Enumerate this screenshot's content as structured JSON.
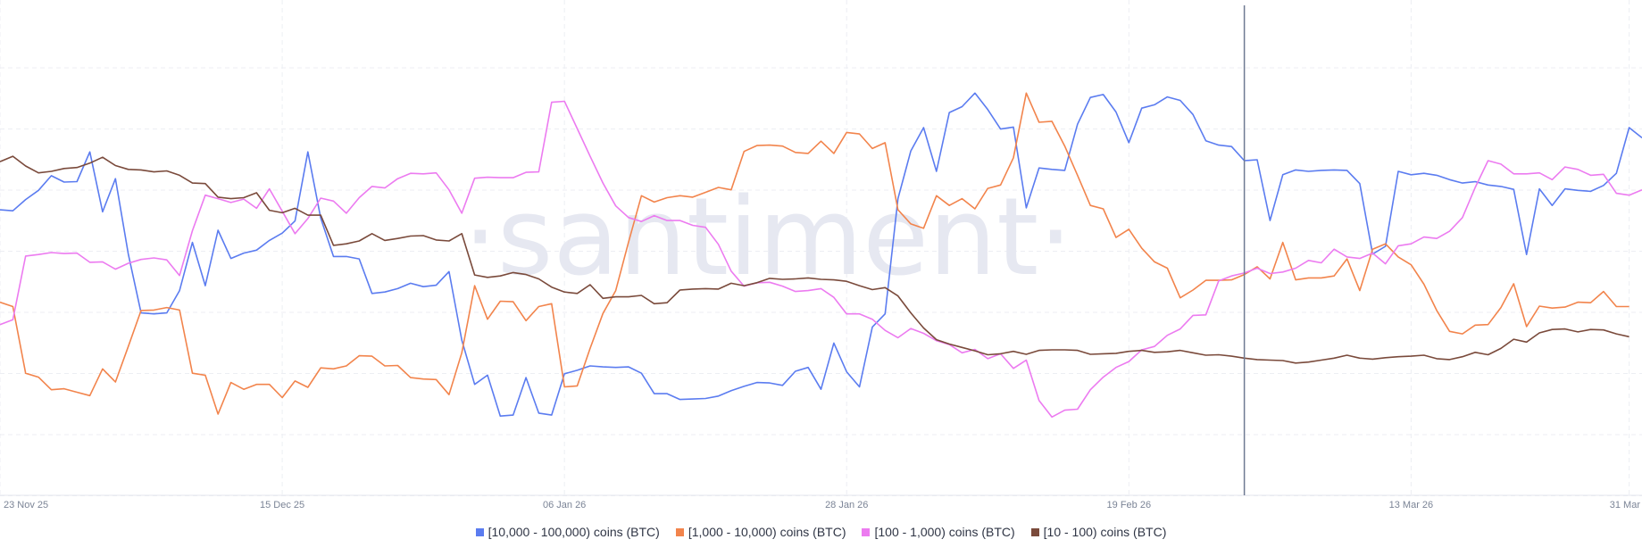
{
  "watermark": "·santiment·",
  "chart_data": {
    "type": "line",
    "title": "",
    "xlabel": "",
    "ylabel": "",
    "x_ticks": [
      "23 Nov 25",
      "15 Dec 25",
      "06 Jan 26",
      "28 Jan 26",
      "19 Feb 26",
      "13 Mar 26",
      "31 Mar"
    ],
    "x_tick_index": [
      0,
      22,
      44,
      66,
      88,
      110,
      127
    ],
    "y_axis": "normalized, no scale shown",
    "ylim": [
      0,
      100
    ],
    "grid": "dashed, light",
    "legend_position": "bottom-center",
    "cursor_index": 97,
    "series": [
      {
        "name": "[10,000 - 100,000) coins (BTC)",
        "color": "#5b7cf0",
        "values": [
          58.7,
          58.5,
          60.8,
          62.7,
          65.7,
          64.4,
          64.5,
          70.6,
          58.3,
          65.1,
          49.6,
          37.5,
          37.3,
          37.5,
          42.1,
          52.0,
          43.1,
          54.5,
          48.7,
          49.8,
          50.4,
          52.4,
          53.9,
          56.4,
          70.6,
          57.0,
          49.1,
          49.1,
          48.6,
          41.5,
          41.8,
          42.5,
          43.6,
          42.9,
          43.2,
          46.0,
          31.9,
          22.8,
          24.7,
          16.3,
          16.5,
          24.2,
          16.9,
          16.5,
          25.0,
          25.7,
          26.6,
          26.4,
          26.3,
          26.4,
          25.1,
          20.9,
          20.9,
          19.7,
          19.8,
          19.9,
          20.4,
          21.5,
          22.4,
          23.2,
          23.1,
          22.6,
          25.5,
          26.3,
          21.8,
          31.3,
          25.4,
          22.3,
          34.6,
          37.3,
          61.0,
          70.8,
          75.6,
          66.6,
          78.7,
          79.9,
          82.7,
          79.3,
          75.3,
          75.7,
          59.1,
          67.3,
          67.0,
          66.8,
          76.3,
          81.8,
          82.4,
          78.8,
          72.5,
          79.6,
          80.3,
          81.9,
          81.2,
          78.3,
          72.9,
          72.0,
          71.7,
          68.8,
          69.0,
          56.5,
          65.9,
          66.9,
          66.6,
          66.8,
          66.9,
          66.8,
          64.1,
          49.6,
          51.2,
          66.6,
          65.9,
          66.2,
          65.8,
          64.9,
          64.2,
          64.5,
          63.8,
          63.5,
          62.9,
          49.5,
          63.0,
          59.6,
          63.0,
          62.7,
          62.5,
          63.7,
          66.2,
          75.6,
          73.5
        ]
      },
      {
        "name": "[1,000 - 10,000) coins (BTC)",
        "color": "#f2844c",
        "values": [
          39.7,
          38.8,
          25.1,
          24.3,
          21.7,
          21.9,
          21.2,
          20.5,
          26.0,
          23.3,
          30.6,
          38.0,
          38.1,
          38.6,
          38.1,
          25.1,
          24.7,
          16.7,
          23.2,
          21.8,
          22.8,
          22.8,
          20.1,
          23.5,
          22.2,
          26.2,
          26.0,
          26.6,
          28.7,
          28.6,
          26.6,
          26.7,
          24.2,
          23.9,
          23.8,
          20.7,
          29.3,
          43.1,
          36.2,
          39.9,
          39.8,
          35.9,
          38.8,
          39.4,
          22.3,
          22.5,
          30.2,
          37.4,
          42.1,
          52.1,
          61.6,
          60.3,
          61.2,
          61.6,
          61.3,
          62.3,
          63.3,
          62.8,
          70.7,
          71.9,
          72.0,
          71.8,
          70.5,
          70.3,
          72.8,
          70.3,
          74.6,
          74.3,
          71.3,
          72.5,
          58.7,
          55.8,
          54.9,
          61.6,
          59.6,
          61.0,
          58.9,
          63.1,
          63.8,
          69.4,
          82.7,
          76.7,
          76.9,
          71.8,
          65.8,
          59.6,
          58.9,
          53.0,
          54.7,
          50.8,
          48.0,
          46.7,
          40.6,
          42.2,
          44.2,
          44.2,
          44.3,
          45.4,
          47.0,
          44.5,
          52.0,
          44.3,
          44.7,
          44.7,
          45.1,
          48.6,
          42.1,
          50.6,
          51.7,
          49.0,
          47.4,
          43.4,
          38.0,
          33.7,
          33.2,
          35.0,
          35.1,
          38.6,
          43.5,
          34.7,
          38.9,
          38.5,
          38.7,
          39.7,
          39.6,
          41.9,
          38.8,
          38.8
        ]
      },
      {
        "name": "[100 - 1,000) coins (BTC)",
        "color": "#ec7bf0",
        "values": [
          35.1,
          36.1,
          49.2,
          49.5,
          49.9,
          49.7,
          49.8,
          47.9,
          48.0,
          46.5,
          47.7,
          48.5,
          48.8,
          48.4,
          45.2,
          54.4,
          61.7,
          61.0,
          60.2,
          60.9,
          59.0,
          63.0,
          58.4,
          53.8,
          56.9,
          61.1,
          60.5,
          58.0,
          61.2,
          63.5,
          63.2,
          65.1,
          66.2,
          66.1,
          66.3,
          62.8,
          58.0,
          65.2,
          65.4,
          65.3,
          65.3,
          66.4,
          66.5,
          80.8,
          81.0,
          75.4,
          69.7,
          64.2,
          59.5,
          57.1,
          56.3,
          57.5,
          56.5,
          56.5,
          55.5,
          55.1,
          51.6,
          46.1,
          43.0,
          43.7,
          43.8,
          43.0,
          41.9,
          42.1,
          42.5,
          40.7,
          37.3,
          37.3,
          36.2,
          33.9,
          32.4,
          34.3,
          33.3,
          31.8,
          31.0,
          29.3,
          30.0,
          28.1,
          29.1,
          26.1,
          27.8,
          19.5,
          16.1,
          17.5,
          17.7,
          21.7,
          24.3,
          26.3,
          27.5,
          29.9,
          30.6,
          32.9,
          34.2,
          37.0,
          37.1,
          44.1,
          45.1,
          45.7,
          46.7,
          45.6,
          45.9,
          46.7,
          48.3,
          47.8,
          50.6,
          49.0,
          48.7,
          49.8,
          47.6,
          51.3,
          51.7,
          53.1,
          52.8,
          54.3,
          57.1,
          63.3,
          68.8,
          68.1,
          66.1,
          66.1,
          66.3,
          64.9,
          67.5,
          67.0,
          65.8,
          66.0,
          62.1,
          61.7,
          62.8
        ]
      },
      {
        "name": "[10 - 100) coins (BTC)",
        "color": "#7a4a3b",
        "values": [
          68.6,
          69.7,
          67.7,
          66.3,
          66.6,
          67.2,
          67.4,
          68.3,
          69.5,
          67.8,
          67.0,
          66.9,
          66.5,
          66.7,
          65.8,
          64.2,
          64.1,
          61.3,
          61.0,
          61.2,
          62.2,
          58.6,
          58.1,
          59.0,
          57.6,
          57.6,
          51.4,
          51.7,
          52.3,
          53.8,
          52.4,
          52.8,
          53.3,
          53.4,
          52.5,
          52.3,
          53.8,
          45.3,
          44.8,
          45.1,
          45.8,
          45.4,
          44.5,
          42.8,
          41.8,
          41.5,
          43.3,
          40.5,
          40.8,
          40.8,
          41.1,
          39.4,
          39.6,
          42.2,
          42.4,
          42.5,
          42.4,
          43.6,
          43.1,
          43.7,
          44.6,
          44.4,
          44.5,
          44.7,
          44.4,
          44.3,
          44.0,
          43.1,
          42.3,
          42.7,
          41.0,
          37.5,
          34.4,
          32.0,
          31.1,
          30.4,
          29.7,
          28.9,
          29.1,
          29.6,
          29.0,
          29.8,
          29.9,
          29.9,
          29.8,
          29.0,
          29.1,
          29.2,
          29.6,
          29.8,
          29.4,
          29.5,
          29.8,
          29.3,
          28.8,
          28.9,
          28.6,
          28.2,
          27.9,
          27.8,
          27.7,
          27.2,
          27.4,
          27.8,
          28.2,
          28.8,
          28.2,
          28.0,
          28.3,
          28.5,
          28.6,
          28.8,
          28.1,
          27.9,
          28.5,
          29.4,
          28.9,
          30.2,
          32.1,
          31.5,
          33.4,
          34.1,
          34.2,
          33.6,
          34.1,
          34.0,
          33.2,
          32.6
        ]
      }
    ]
  }
}
